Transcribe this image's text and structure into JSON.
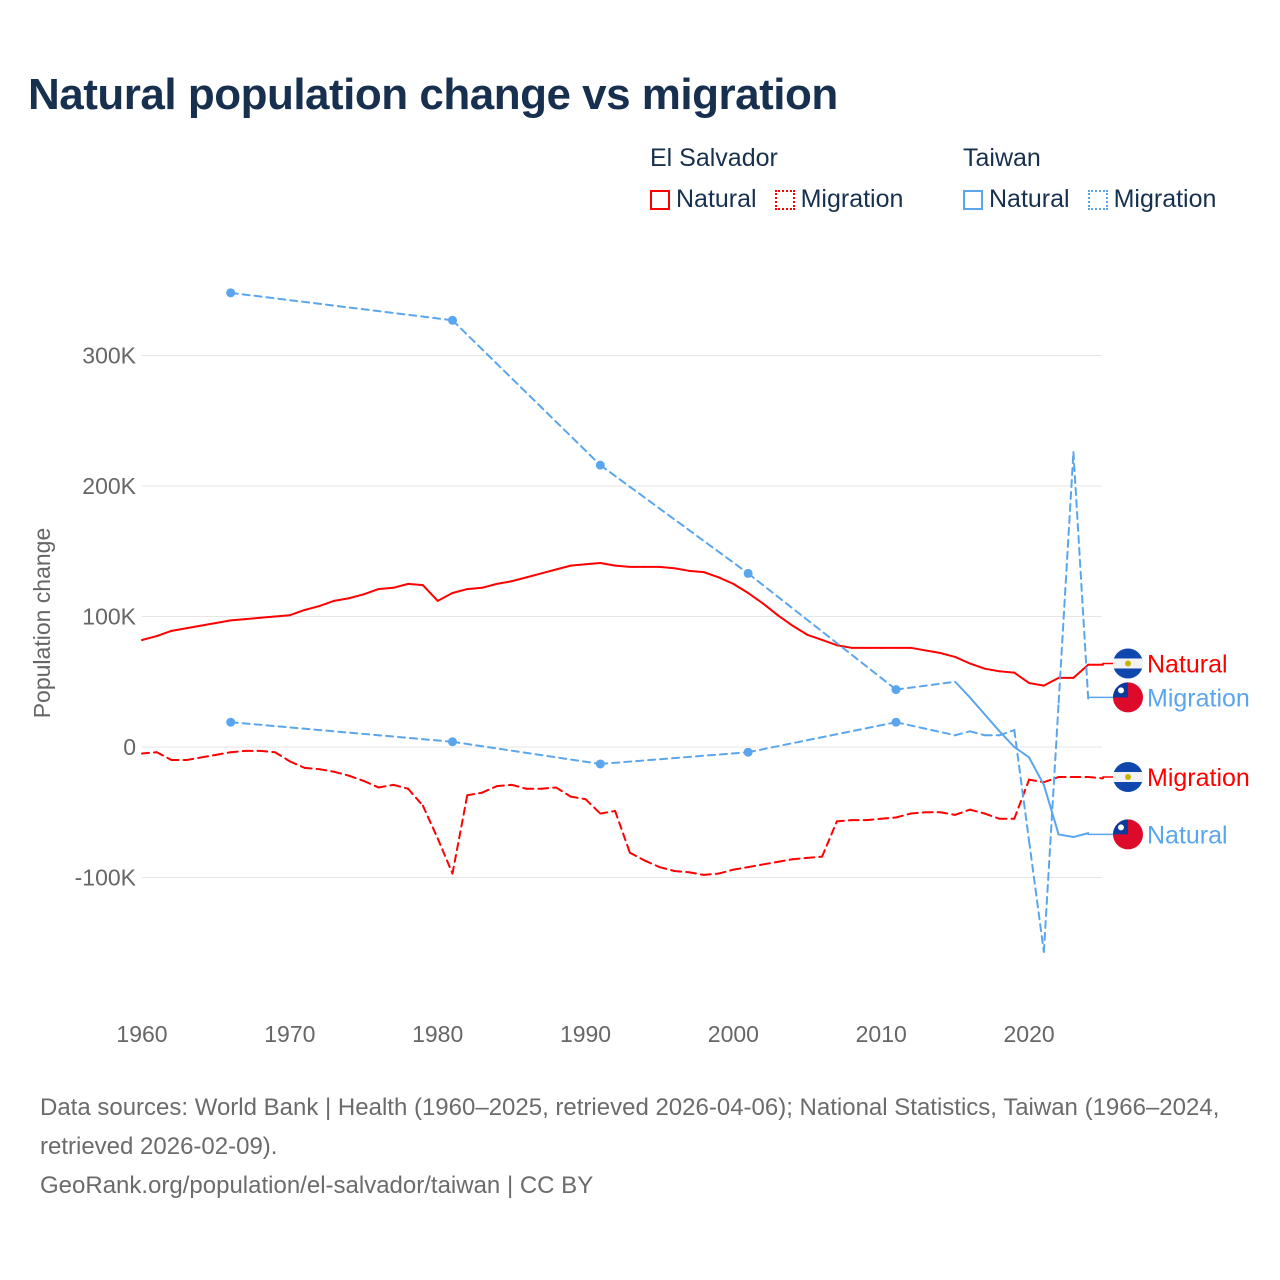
{
  "title": "Natural population change vs migration",
  "legend": {
    "groups": [
      {
        "name": "El Salvador",
        "items": [
          "Natural",
          "Migration"
        ],
        "color": "#ff0000"
      },
      {
        "name": "Taiwan",
        "items": [
          "Natural",
          "Migration"
        ],
        "color": "#5aa6ee"
      }
    ]
  },
  "footer": {
    "line1": "Data sources: World Bank | Health (1960–2025, retrieved 2026-04-06); National Statistics, Taiwan (1966–2024, retrieved 2026-02-09).",
    "line2": "GeoRank.org/population/el-salvador/taiwan | CC BY"
  },
  "chart_data": {
    "type": "line",
    "title": "Natural population change vs migration",
    "xlabel": "",
    "ylabel": "Population change",
    "xlim": [
      1960,
      2025
    ],
    "xticks": [
      1960,
      1970,
      1980,
      1990,
      2000,
      2010,
      2020
    ],
    "yticks": [
      -100000,
      0,
      100000,
      200000,
      300000
    ],
    "ytick_labels": [
      "-100K",
      "0",
      "100K",
      "200K",
      "300K"
    ],
    "grid": true,
    "series": [
      {
        "name": "El Salvador Natural",
        "label": "Natural",
        "country": "El Salvador",
        "color": "#ff0000",
        "dash": false,
        "x": [
          1960,
          1961,
          1962,
          1963,
          1964,
          1965,
          1966,
          1967,
          1968,
          1969,
          1970,
          1971,
          1972,
          1973,
          1974,
          1975,
          1976,
          1977,
          1978,
          1979,
          1980,
          1981,
          1982,
          1983,
          1984,
          1985,
          1986,
          1987,
          1988,
          1989,
          1990,
          1991,
          1992,
          1993,
          1994,
          1995,
          1996,
          1997,
          1998,
          1999,
          2000,
          2001,
          2002,
          2003,
          2004,
          2005,
          2006,
          2007,
          2008,
          2009,
          2010,
          2011,
          2012,
          2013,
          2014,
          2015,
          2016,
          2017,
          2018,
          2019,
          2020,
          2021,
          2022,
          2023,
          2024,
          2025
        ],
        "y": [
          82,
          85,
          89,
          91,
          93,
          95,
          97,
          98,
          99,
          100,
          101,
          105,
          108,
          112,
          114,
          117,
          121,
          122,
          125,
          124,
          112,
          118,
          121,
          122,
          125,
          127,
          130,
          133,
          136,
          139,
          140,
          141,
          139,
          138,
          138,
          138,
          137,
          135,
          134,
          130,
          125,
          118,
          110,
          101,
          93,
          86,
          82,
          78,
          76,
          76,
          76,
          76,
          76,
          74,
          72,
          69,
          64,
          60,
          58,
          57,
          49,
          47,
          53,
          53,
          63,
          63
        ]
      },
      {
        "name": "El Salvador Migration",
        "label": "Migration",
        "country": "El Salvador",
        "color": "#ff0000",
        "dash": true,
        "x": [
          1960,
          1961,
          1962,
          1963,
          1964,
          1965,
          1966,
          1967,
          1968,
          1969,
          1970,
          1971,
          1972,
          1973,
          1974,
          1975,
          1976,
          1977,
          1978,
          1979,
          1980,
          1981,
          1982,
          1983,
          1984,
          1985,
          1986,
          1987,
          1988,
          1989,
          1990,
          1991,
          1992,
          1993,
          1994,
          1995,
          1996,
          1997,
          1998,
          1999,
          2000,
          2001,
          2002,
          2003,
          2004,
          2005,
          2006,
          2007,
          2008,
          2009,
          2010,
          2011,
          2012,
          2013,
          2014,
          2015,
          2016,
          2017,
          2018,
          2019,
          2020,
          2021,
          2022,
          2023,
          2024,
          2025
        ],
        "y": [
          -5,
          -4,
          -10,
          -10,
          -8,
          -6,
          -4,
          -3,
          -3,
          -4,
          -11,
          -16,
          -17,
          -19,
          -22,
          -26,
          -31,
          -29,
          -32,
          -45,
          -70,
          -97,
          -37,
          -35,
          -30,
          -29,
          -32,
          -32,
          -31,
          -38,
          -40,
          -51,
          -49,
          -81,
          -87,
          -92,
          -95,
          -96,
          -98,
          -97,
          -94,
          -92,
          -90,
          -88,
          -86,
          -85,
          -84,
          -57,
          -56,
          -56,
          -55,
          -54,
          -51,
          -50,
          -50,
          -52,
          -48,
          -51,
          -55,
          -55,
          -25,
          -27,
          -23,
          -23,
          -23,
          -24
        ]
      },
      {
        "name": "Taiwan Natural",
        "label": "Natural",
        "country": "Taiwan",
        "color": "#5aa6ee",
        "dash": false,
        "x": [
          1966,
          1981,
          1991,
          2001,
          2011,
          2015,
          2016,
          2017,
          2018,
          2019,
          2020,
          2021,
          2022,
          2023,
          2024
        ],
        "y": [
          348,
          327,
          216,
          133,
          44,
          50,
          38,
          25,
          12,
          0,
          -8,
          -29,
          -67,
          -69,
          -66
        ]
      },
      {
        "name": "Taiwan Migration",
        "label": "Migration",
        "country": "Taiwan",
        "color": "#5aa6ee",
        "dash": true,
        "x": [
          1966,
          1981,
          1991,
          2001,
          2011,
          2015,
          2016,
          2017,
          2018,
          2019,
          2020,
          2021,
          2022,
          2023,
          2024
        ],
        "y": [
          19,
          4,
          -13,
          -4,
          19,
          9,
          12,
          9,
          9,
          13,
          -72,
          -157,
          34,
          226,
          37
        ]
      }
    ],
    "y_units": "thousands",
    "end_labels": [
      {
        "text": "Natural",
        "country": "El Salvador",
        "color": "#ff0000",
        "series": 0,
        "label_value": 64
      },
      {
        "text": "Migration",
        "country": "Taiwan",
        "color": "#5aa6ee",
        "series": 3,
        "label_value": 38
      },
      {
        "text": "Migration",
        "country": "El Salvador",
        "color": "#ff0000",
        "series": 1,
        "label_value": -23
      },
      {
        "text": "Natural",
        "country": "Taiwan",
        "color": "#5aa6ee",
        "series": 2,
        "label_value": -67
      }
    ]
  }
}
